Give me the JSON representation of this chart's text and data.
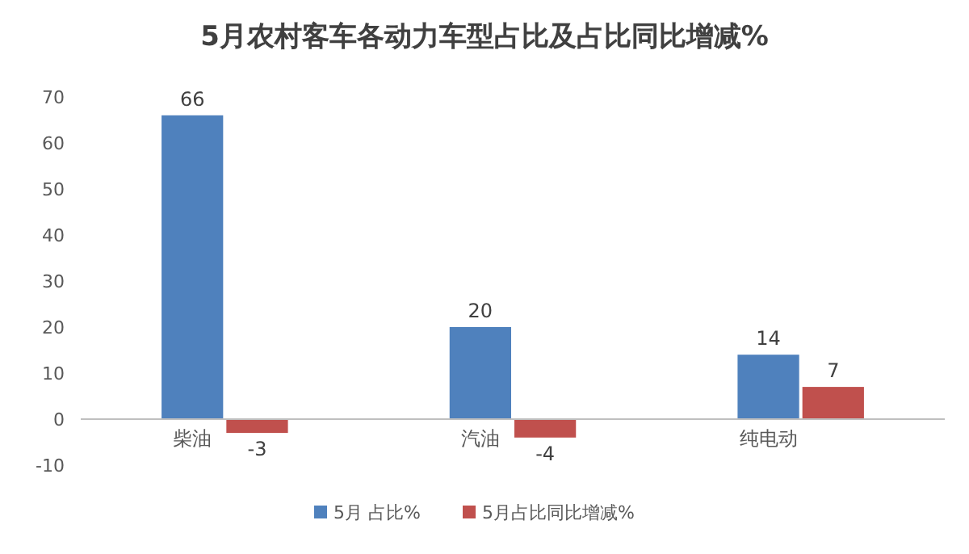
{
  "chart_data": {
    "type": "bar",
    "title": "5月农村客车各动力车型占比及占比同比增减%",
    "categories": [
      "柴油",
      "汽油",
      "纯电动"
    ],
    "series": [
      {
        "name": "5月 占比%",
        "color": "#4f81bd",
        "values": [
          66,
          20,
          14
        ]
      },
      {
        "name": "5月占比同比增减%",
        "color": "#c0504d",
        "values": [
          -3,
          -4,
          7
        ]
      }
    ],
    "ylim": [
      -10,
      70
    ],
    "yticks": [
      -10,
      0,
      10,
      20,
      30,
      40,
      50,
      60,
      70
    ],
    "data_labels": true,
    "legend": "bottom"
  }
}
